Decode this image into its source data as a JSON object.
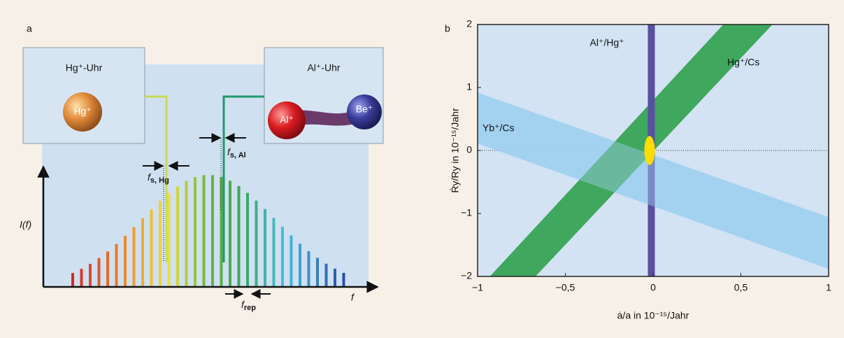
{
  "panel_a": {
    "letter": "a",
    "hg_clock": {
      "title": "Hg⁺-Uhr",
      "ion": "Hg⁺"
    },
    "al_clock": {
      "title": "Al⁺-Uhr",
      "ion": "Al⁺",
      "partner": "Be⁺"
    },
    "y_axis_label": "I(f)",
    "x_axis_label": "f",
    "f_s_hg": {
      "main": "f",
      "sub": "s, Hg"
    },
    "f_s_al": {
      "main": "f",
      "sub": "s, Al"
    },
    "f_rep": {
      "main": "f",
      "sub": "rep"
    }
  },
  "chart_data": {
    "type": "band",
    "letter": "b",
    "x_label": "ȧ/a in 10⁻¹⁵/Jahr",
    "y_label": "Ṙy/Ry in 10⁻¹⁵/Jahr",
    "xlim": [
      -1,
      1
    ],
    "ylim": [
      -2,
      2
    ],
    "xticks": [
      {
        "value": -1,
        "label": "−1"
      },
      {
        "value": -0.5,
        "label": "−0,5"
      },
      0,
      {
        "value": 0.5,
        "label": "0,5"
      },
      1
    ],
    "yticks": [
      {
        "value": -2,
        "label": "−2"
      },
      {
        "value": -1,
        "label": "−1"
      },
      0,
      1,
      2
    ],
    "zero_line": true,
    "bands": [
      {
        "name": "Yb⁺/Cs",
        "color": "#9fd0ef",
        "x": [
          -1,
          1,
          1,
          -1
        ],
        "y": [
          0.92,
          -1.06,
          -1.88,
          0.11
        ]
      },
      {
        "name": "Hg⁺/Cs",
        "color": "#3fa75e",
        "x": [
          -0.93,
          -0.67,
          0.68,
          0.4
        ],
        "y": [
          -2,
          -2,
          2,
          2
        ]
      },
      {
        "name": "Al⁺/Hg⁺",
        "color": "#5a50a2",
        "x": [
          -0.03,
          0.01,
          0.01,
          -0.03
        ],
        "y": [
          -2,
          -2,
          2,
          2
        ]
      }
    ],
    "ellipse": {
      "x": -0.02,
      "y": 0,
      "rx": 0.03,
      "ry": 0.23,
      "color": "#ffdd00"
    }
  }
}
